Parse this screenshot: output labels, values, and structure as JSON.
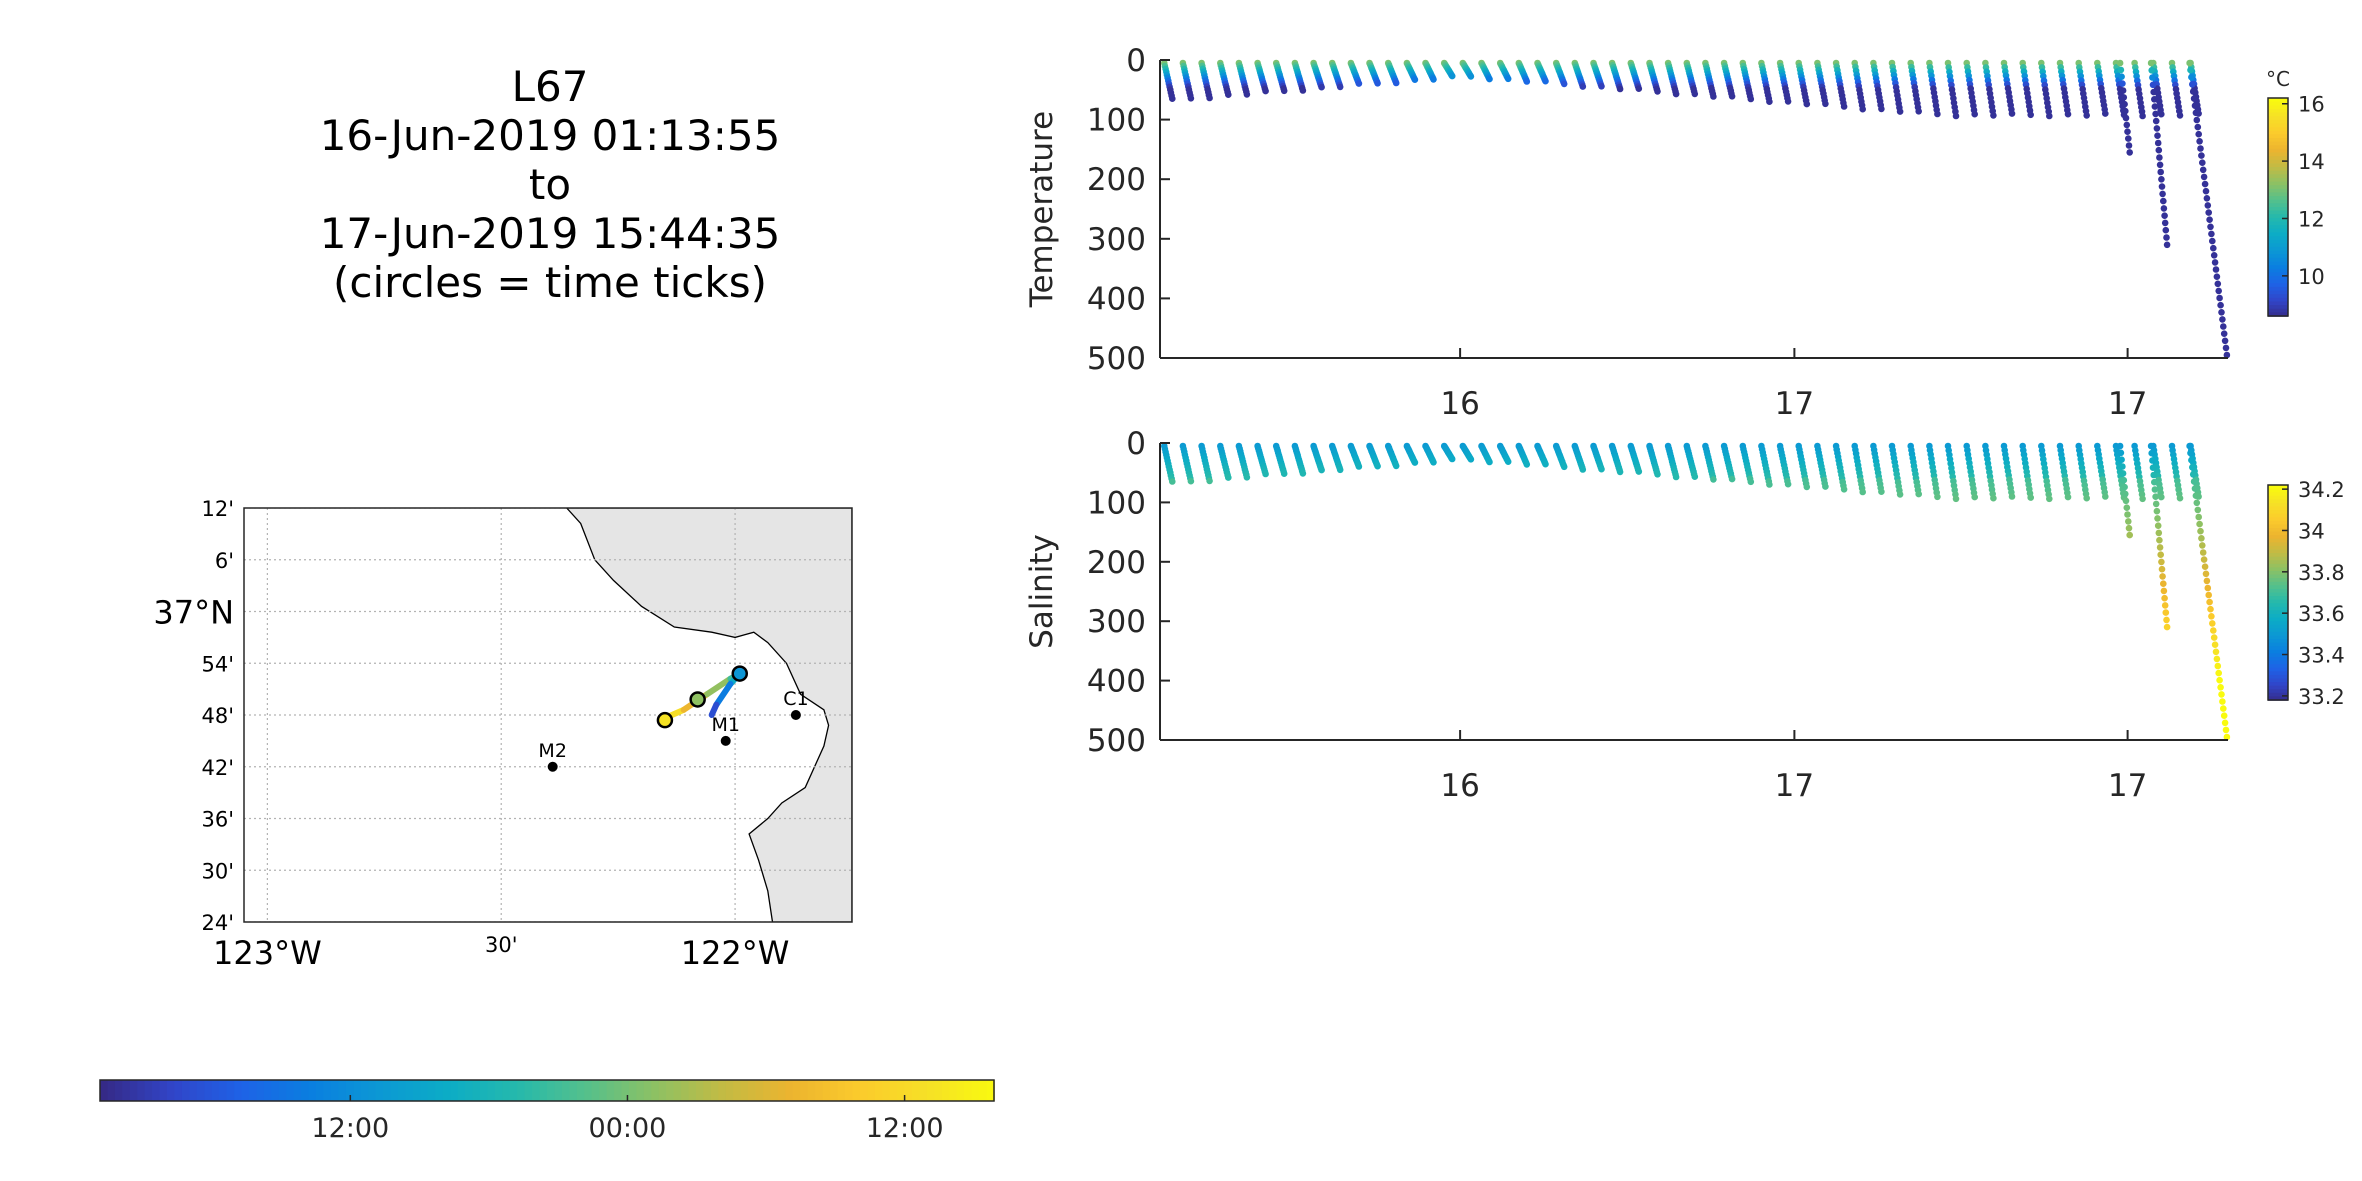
{
  "header": {
    "lines": [
      "L67",
      "16-Jun-2019 01:13:55",
      "to",
      "17-Jun-2019 15:44:35",
      "(circles = time ticks)"
    ]
  },
  "colors": {
    "parula": [
      "#352a87",
      "#3145c8",
      "#1e62e6",
      "#0a7ee0",
      "#0c98d4",
      "#0cacc6",
      "#25b9ac",
      "#54c08c",
      "#8cc164",
      "#c2bb44",
      "#ecb42f",
      "#fbcb2c",
      "#f6e126",
      "#f9fb0e"
    ],
    "land": "#e5e5e5",
    "grid": "#b3b3b3"
  },
  "chart_data": [
    {
      "type": "scatter",
      "name_ref": "temperature-section",
      "ylabel": "Temperature",
      "ylim": [
        0,
        500
      ],
      "yticks": [
        0,
        100,
        200,
        300,
        400,
        500
      ],
      "y_reversed": true,
      "xlim": [
        0,
        1
      ],
      "xticks": [
        {
          "x": 0.281,
          "label": "16"
        },
        {
          "x": 0.594,
          "label": "17"
        },
        {
          "x": 0.906,
          "label": "17"
        }
      ],
      "profiles": {
        "count": 56,
        "x_start": 0.004,
        "x_end": 0.965,
        "min_depth": 20,
        "edge_depth": 85
      },
      "special_profiles": [
        {
          "x_top": 0.899,
          "x_bottom": 0.908,
          "depth": 150
        },
        {
          "x_top": 0.928,
          "x_bottom": 0.943,
          "depth": 305
        },
        {
          "x_top": 0.964,
          "x_bottom": 0.999,
          "depth": 490
        }
      ],
      "colorbar": {
        "unit": "°C",
        "min": 8.6,
        "max": 16.2,
        "ticks": [
          10,
          12,
          14,
          16
        ]
      }
    },
    {
      "type": "scatter",
      "name_ref": "salinity-section",
      "ylabel": "Salinity",
      "ylim": [
        0,
        500
      ],
      "yticks": [
        0,
        100,
        200,
        300,
        400,
        500
      ],
      "y_reversed": true,
      "xlim": [
        0,
        1
      ],
      "xticks": [
        {
          "x": 0.281,
          "label": "16"
        },
        {
          "x": 0.594,
          "label": "17"
        },
        {
          "x": 0.906,
          "label": "17"
        }
      ],
      "profiles": {
        "count": 56,
        "x_start": 0.004,
        "x_end": 0.965,
        "min_depth": 20,
        "edge_depth": 85
      },
      "special_profiles": [
        {
          "x_top": 0.899,
          "x_bottom": 0.908,
          "depth": 150
        },
        {
          "x_top": 0.928,
          "x_bottom": 0.943,
          "depth": 305
        },
        {
          "x_top": 0.964,
          "x_bottom": 0.999,
          "depth": 490
        }
      ],
      "colorbar": {
        "unit": "",
        "min": 33.18,
        "max": 34.22,
        "ticks": [
          {
            "v": 33.2,
            "label": "33.2"
          },
          {
            "v": 33.4,
            "label": "33.4"
          },
          {
            "v": 33.6,
            "label": "33.6"
          },
          {
            "v": 33.8,
            "label": "33.8"
          },
          {
            "v": 34.0,
            "label": "34"
          },
          {
            "v": 34.2,
            "label": "34.2"
          }
        ]
      }
    },
    {
      "type": "map",
      "lon_range": [
        -123.05,
        -121.75
      ],
      "lat_range": [
        36.4,
        37.2
      ],
      "lon_ticks": [
        {
          "v": -123.0,
          "label": "123°W",
          "major": true
        },
        {
          "v": -122.5,
          "label": "30'",
          "major": false
        },
        {
          "v": -122.0,
          "label": "122°W",
          "major": true
        }
      ],
      "lat_ticks": [
        {
          "v": 37.2,
          "label": "12'",
          "major": false
        },
        {
          "v": 37.1,
          "label": "6'",
          "major": false
        },
        {
          "v": 37.0,
          "label": "37°N",
          "major": true
        },
        {
          "v": 36.9,
          "label": "54'",
          "major": false
        },
        {
          "v": 36.8,
          "label": "48'",
          "major": false
        },
        {
          "v": 36.7,
          "label": "42'",
          "major": false
        },
        {
          "v": 36.6,
          "label": "36'",
          "major": false
        },
        {
          "v": 36.5,
          "label": "30'",
          "major": false
        },
        {
          "v": 36.4,
          "label": "24'",
          "major": false
        }
      ],
      "stations": [
        {
          "label": "M2",
          "lon": -122.39,
          "lat": 36.7
        },
        {
          "label": "M1",
          "lon": -122.02,
          "lat": 36.75
        },
        {
          "label": "C1",
          "lon": -121.87,
          "lat": 36.8
        }
      ],
      "track": [
        {
          "lon": -122.16,
          "lat": 36.79,
          "t": 0.98
        },
        {
          "lon": -122.11,
          "lat": 36.81,
          "t": 0.85
        },
        {
          "lon": -122.06,
          "lat": 36.84,
          "t": 0.7
        },
        {
          "lon": -122.01,
          "lat": 36.87,
          "t": 0.55
        },
        {
          "lon": -121.99,
          "lat": 36.88,
          "t": 0.45
        },
        {
          "lon": -122.01,
          "lat": 36.86,
          "t": 0.3
        },
        {
          "lon": -122.04,
          "lat": 36.82,
          "t": 0.15
        },
        {
          "lon": -122.05,
          "lat": 36.8,
          "t": 0.05
        }
      ],
      "time_circles": [
        {
          "lon": -122.15,
          "lat": 36.79,
          "t": 0.93
        },
        {
          "lon": -122.08,
          "lat": 36.83,
          "t": 0.62
        },
        {
          "lon": -121.99,
          "lat": 36.88,
          "t": 0.3
        }
      ]
    },
    {
      "type": "colorbar",
      "orientation": "horizontal",
      "ticks": [
        {
          "pos": 0.28,
          "label": "12:00"
        },
        {
          "pos": 0.59,
          "label": "00:00"
        },
        {
          "pos": 0.9,
          "label": "12:00"
        }
      ]
    }
  ]
}
